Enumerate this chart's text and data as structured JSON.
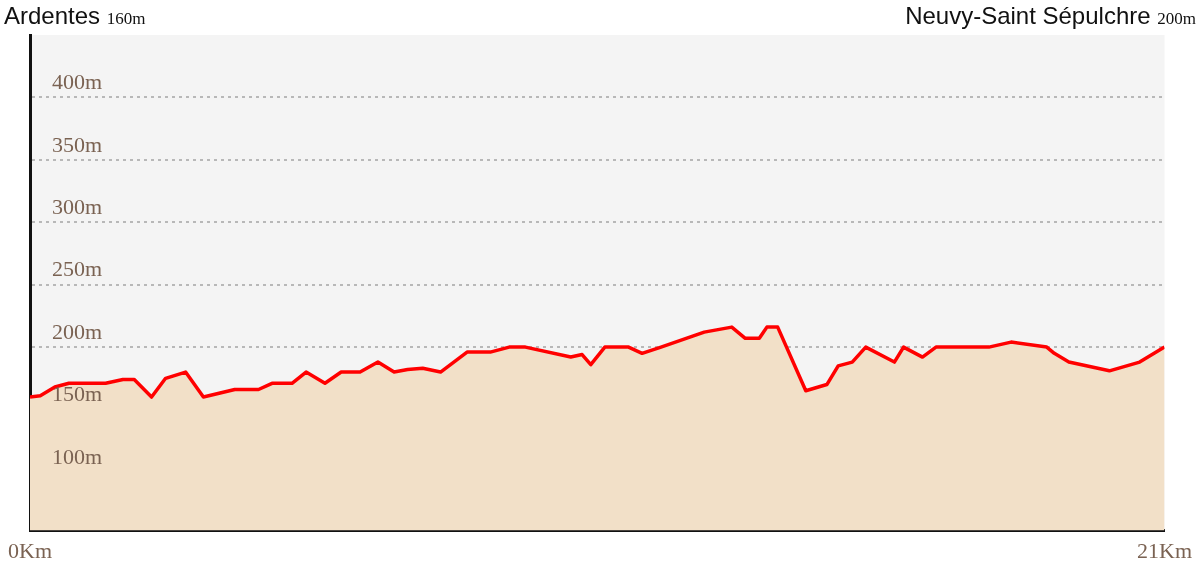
{
  "chart_data": {
    "type": "area",
    "annotations": [
      "Ardentes",
      "160m",
      "Neuvy-Saint Sépulchre",
      "200m"
    ],
    "x": [
      0,
      0.19,
      0.46,
      0.72,
      1.4,
      1.72,
      1.93,
      2.25,
      2.51,
      2.88,
      3.21,
      3.79,
      4.23,
      4.48,
      4.85,
      5.11,
      5.46,
      5.76,
      6.11,
      6.44,
      6.74,
      6.99,
      7.27,
      7.6,
      8.09,
      8.52,
      8.87,
      9.17,
      10.01,
      10.22,
      10.38,
      10.64,
      11.08,
      11.33,
      11.68,
      12.48,
      12.99,
      13.24,
      13.5,
      13.64,
      13.84,
      14.36,
      14.75,
      14.96,
      15.22,
      15.47,
      16.0,
      16.17,
      16.52,
      16.77,
      17.75,
      18.16,
      18.82,
      18.96,
      19.23,
      19.98,
      20.54,
      21
    ],
    "series": [
      {
        "color": "#ff0000",
        "values": [
          160,
          161,
          168,
          171,
          171,
          174,
          174,
          160,
          175,
          180,
          160,
          166,
          166,
          171,
          171,
          180,
          171,
          180,
          180,
          188,
          180,
          182,
          183,
          180,
          196,
          196,
          200,
          200,
          192,
          194,
          186,
          200,
          200,
          195,
          200,
          212,
          216,
          207,
          207,
          216,
          216,
          165,
          170,
          185,
          188,
          200,
          188,
          200,
          192,
          200,
          200,
          204,
          200,
          195,
          188,
          181,
          188,
          200
        ]
      }
    ],
    "xlim": [
      0,
      21
    ],
    "xticks": [
      {
        "value": 0,
        "label": "0Km"
      },
      {
        "value": 21,
        "label": "21Km"
      }
    ],
    "ylim": [
      53,
      450
    ],
    "yticks": [
      {
        "value": 100,
        "label": "100m"
      },
      {
        "value": 150,
        "label": "150m"
      },
      {
        "value": 200,
        "label": "200m"
      },
      {
        "value": 250,
        "label": "250m"
      },
      {
        "value": 300,
        "label": "300m"
      },
      {
        "value": 350,
        "label": "350m"
      },
      {
        "value": 400,
        "label": "400m"
      }
    ],
    "grid": "y",
    "line_style": "solid",
    "marker": "none",
    "legend": false
  }
}
